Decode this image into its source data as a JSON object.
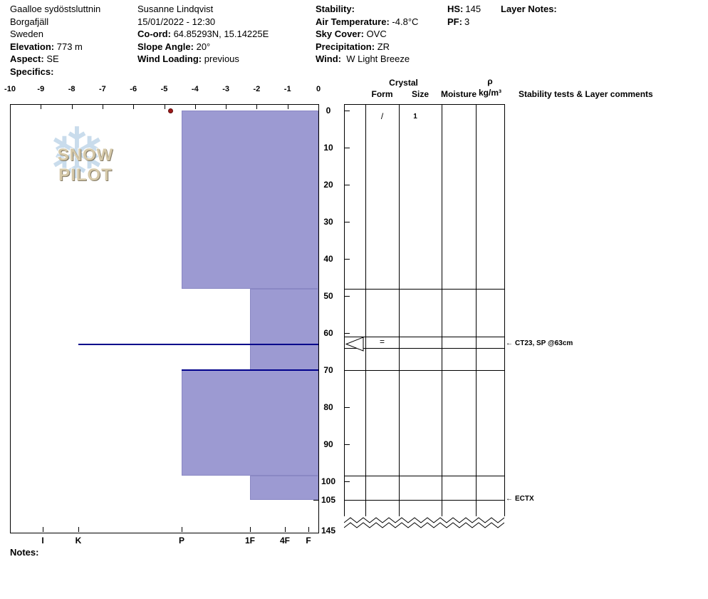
{
  "header": {
    "site": {
      "name": "Gaalloe sydöstsluttnin",
      "region": "Borgafjäll",
      "country": "Sweden",
      "elevation_label": "Elevation:",
      "elevation": "773 m",
      "aspect_label": "Aspect:",
      "aspect": "SE",
      "specifics_label": "Specifics:"
    },
    "observer": {
      "name": "Susanne Lindqvist",
      "datetime": "15/01/2022 - 12:30",
      "coord_label": "Co-ord:",
      "coord": "64.85293N, 15.14225E",
      "slope_angle_label": "Slope Angle:",
      "slope_angle": "20°",
      "wind_loading_label": "Wind Loading:",
      "wind_loading": "previous"
    },
    "conditions": {
      "stability_label": "Stability:",
      "air_temp_label": "Air Temperature:",
      "air_temp": "-4.8°C",
      "sky_cover_label": "Sky Cover:",
      "sky_cover": "OVC",
      "precip_label": "Precipitation:",
      "precip": "ZR",
      "wind_label": "Wind:",
      "wind": "W Light Breeze"
    },
    "totals": {
      "hs_label": "HS:",
      "hs": "145",
      "pf_label": "PF:",
      "pf": "3"
    },
    "layer_notes_label": "Layer Notes:"
  },
  "grid": {
    "headers": {
      "crystal": "Crystal",
      "form": "Form",
      "size": "Size",
      "moisture": "Moisture",
      "rho": "ρ",
      "rho_unit": "kg/m³",
      "comments": "Stability tests & Layer comments"
    }
  },
  "logo": {
    "snowflake_icon": "❄",
    "text": "SNOW PILOT"
  },
  "icons": {
    "left_arrow": "←"
  },
  "colors": {
    "bar_fill": "#9c9ad2",
    "bar_border": "#8a88c4",
    "ice_line": "#00008b",
    "temp_point": "#9e1a1a",
    "snowflake": "#c9dcec",
    "logo_text": "#d5c8a8"
  },
  "footer": {
    "notes_label": "Notes:"
  },
  "chart_data": {
    "type": "bar",
    "subtype": "snow-profile",
    "title": "SnowPilot snow hardness and temperature profile",
    "temperature_axis": {
      "ticks": [
        -10,
        -9,
        -8,
        -7,
        -6,
        -5,
        -4,
        -3,
        -2,
        -1,
        0
      ],
      "unit": "°C",
      "position": "top"
    },
    "depth_axis": {
      "ticks": [
        0,
        10,
        20,
        30,
        40,
        50,
        60,
        70,
        80,
        90,
        100,
        105
      ],
      "break_label": 145,
      "unit": "cm",
      "position": "right"
    },
    "hardness_axis": {
      "labels": [
        "I",
        "K",
        "P",
        "1F",
        "4F",
        "F"
      ],
      "position": "bottom"
    },
    "temperature_points": [
      {
        "depth_cm": 0,
        "temp_c": -4.8
      }
    ],
    "layers": [
      {
        "top_cm": 0,
        "bottom_cm": 48,
        "hardness": "P",
        "form": "/",
        "size": "1"
      },
      {
        "top_cm": 48,
        "bottom_cm": 61,
        "hardness": "1F"
      },
      {
        "top_cm": 61,
        "bottom_cm": 64,
        "hardness": "1F",
        "form": "=",
        "ice_layer_at_cm": 63,
        "ice_hardness": "K",
        "failure_arrow": true
      },
      {
        "top_cm": 64,
        "bottom_cm": 70,
        "hardness": "1F"
      },
      {
        "top_cm": 70,
        "bottom_cm": 98.5,
        "hardness": "P",
        "dark_top_boundary": true
      },
      {
        "top_cm": 98.5,
        "bottom_cm": 105,
        "hardness": "1F"
      }
    ],
    "annotations": [
      {
        "depth_cm": 63,
        "text": "CT23, SP @63cm"
      },
      {
        "depth_cm": 105,
        "text": "ECTX"
      }
    ],
    "total_depth_cm": 145
  }
}
